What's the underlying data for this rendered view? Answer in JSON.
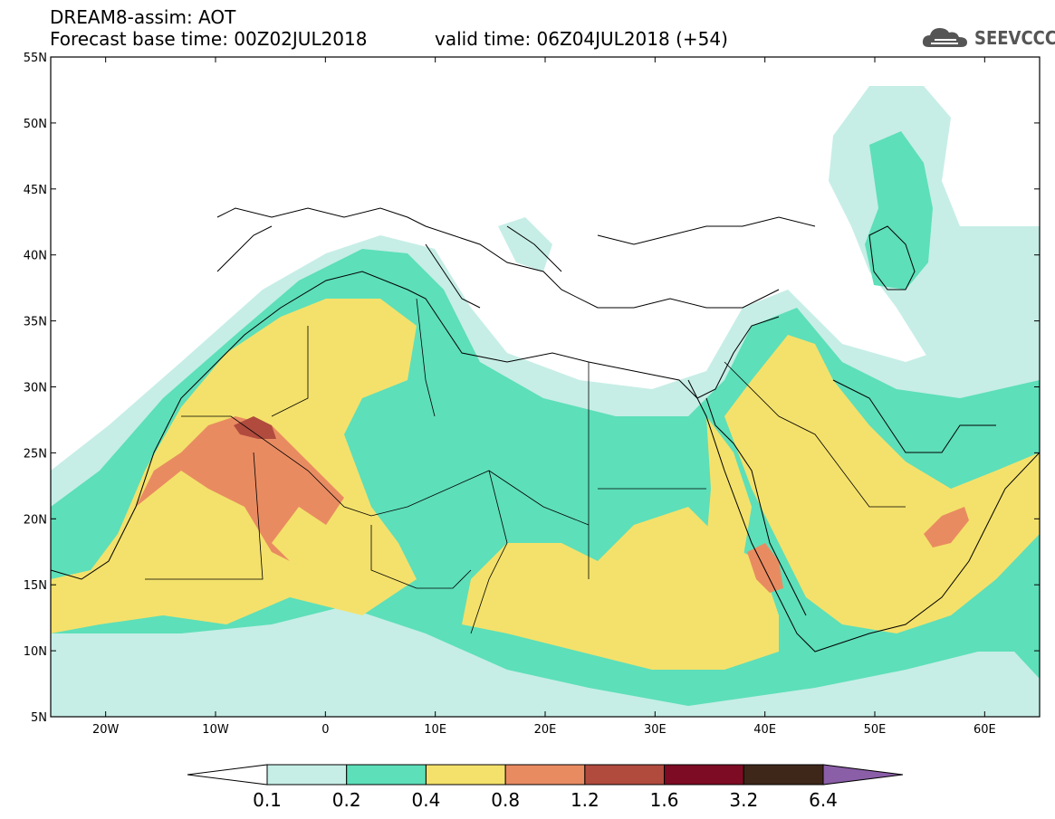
{
  "header": {
    "line1": "DREAM8-assim: AOT",
    "line2_left": "Forecast base time: 00Z02JUL2018",
    "line2_right": "valid time: 06Z04JUL2018 (+54)"
  },
  "logo": {
    "text": "SEEVCCC",
    "icon": "cloud-icon"
  },
  "map": {
    "lon_range": [
      -25,
      65
    ],
    "lat_range": [
      5,
      55
    ],
    "lon_ticks": [
      "20W",
      "10W",
      "0",
      "10E",
      "20E",
      "30E",
      "40E",
      "50E",
      "60E"
    ],
    "lat_ticks": [
      "5N",
      "10N",
      "15N",
      "20N",
      "25N",
      "30N",
      "35N",
      "40N",
      "45N",
      "50N",
      "55N"
    ],
    "field": "Aerosol Optical Thickness"
  },
  "colorbar": {
    "colors": [
      "#ffffff",
      "#c6eee6",
      "#5ddfb9",
      "#f4e16b",
      "#e98b61",
      "#b04b3e",
      "#7d0b23",
      "#3e2719",
      "#8b5ea8"
    ],
    "labels": [
      "0.1",
      "0.2",
      "0.4",
      "0.8",
      "1.2",
      "1.6",
      "3.2",
      "6.4"
    ]
  }
}
